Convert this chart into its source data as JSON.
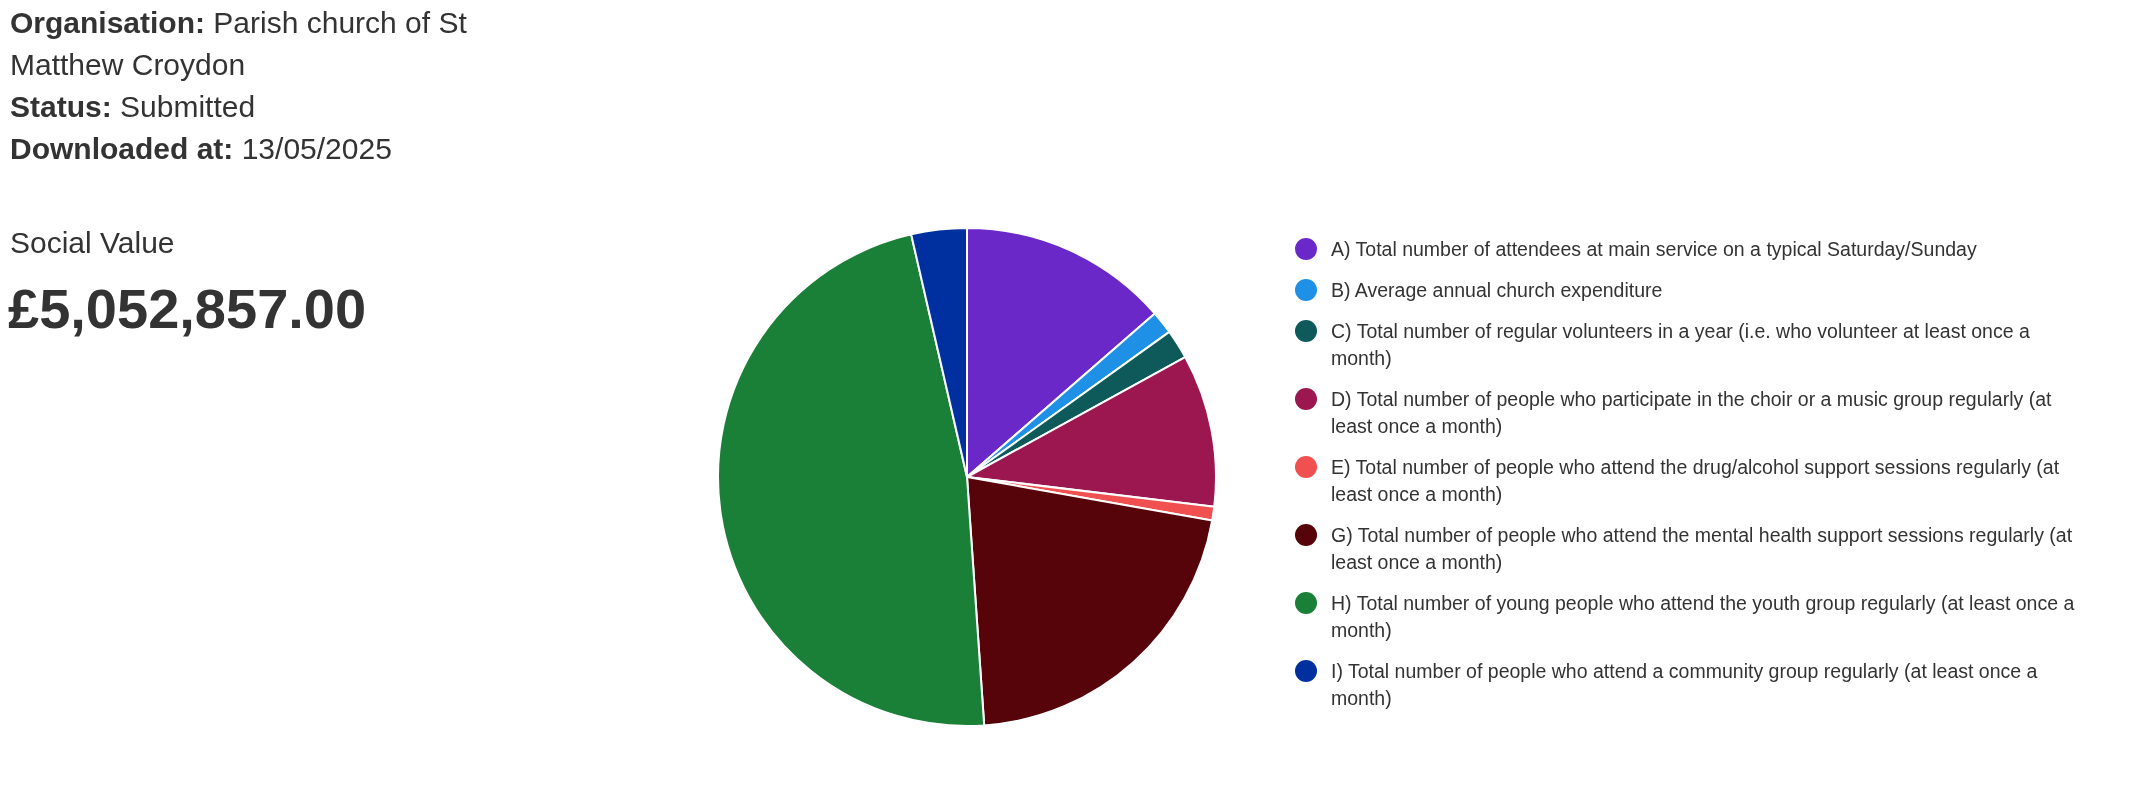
{
  "chart_data": {
    "type": "pie",
    "title": "£5,052,857.00",
    "subtitle": "Social Value",
    "annotations": [
      "Organisation: Parish church of St Matthew Croydon",
      "Status: Submitted",
      "Downloaded at: 13/05/2025"
    ],
    "categories": [
      "A) Total number of attendees at main service on a typical Saturday/Sunday",
      "B) Average annual church expenditure",
      "C) Total number of regular volunteers in a year (i.e. who volunteer at least once a month)",
      "D) Total number of people who participate in the choir or a music group regularly (at least once a month)",
      "E) Total number of people who attend the drug/alcohol support sessions regularly (at least once a month)",
      "G) Total number of people who attend the mental health support sessions regularly (at least once a month)",
      "H) Total number of young people who attend the youth group regularly (at least once a month)",
      "I) Total number of people who attend a community group regularly (at least once a month)"
    ],
    "values": [
      13.6,
      1.5,
      1.9,
      9.9,
      0.9,
      21.1,
      47.5,
      3.6
    ],
    "colors": [
      "#6a28c8",
      "#1e90e6",
      "#0e5a5a",
      "#9c1650",
      "#f05050",
      "#560309",
      "#1a8038",
      "#0030a0"
    ],
    "legend": "right"
  }
}
